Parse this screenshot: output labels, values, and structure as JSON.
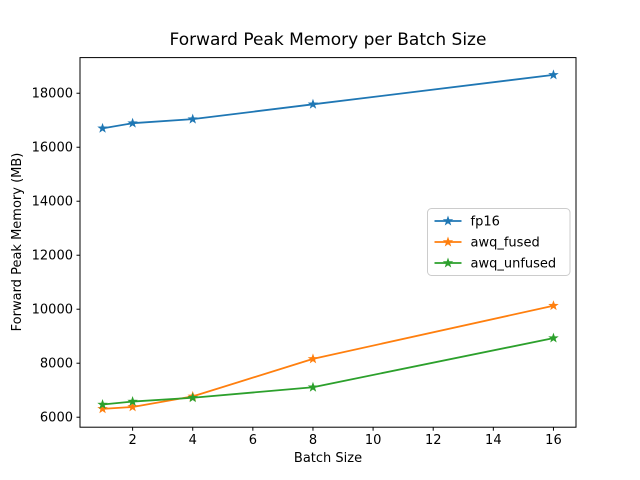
{
  "chart_data": {
    "type": "line",
    "title": "Forward Peak Memory per Batch Size",
    "xlabel": "Batch Size",
    "ylabel": "Forward Peak Memory (MB)",
    "x": [
      1,
      2,
      4,
      8,
      16
    ],
    "series": [
      {
        "name": "fp16",
        "color": "#1f77b4",
        "values": [
          16700,
          16890,
          17040,
          17590,
          18680
        ]
      },
      {
        "name": "awq_fused",
        "color": "#ff7f0e",
        "values": [
          6310,
          6380,
          6770,
          8160,
          10130
        ]
      },
      {
        "name": "awq_unfused",
        "color": "#2ca02c",
        "values": [
          6470,
          6580,
          6720,
          7110,
          8930
        ]
      }
    ],
    "marker": "star",
    "xticks": [
      2,
      4,
      6,
      8,
      10,
      12,
      14,
      16
    ],
    "yticks": [
      6000,
      8000,
      10000,
      12000,
      14000,
      16000,
      18000
    ],
    "xlim": [
      0.25,
      16.75
    ],
    "ylim": [
      5630,
      19320
    ],
    "grid": false,
    "legend_position": "center right",
    "colors": {
      "spine": "#000000",
      "background": "#ffffff",
      "legend_border": "#cccccc"
    }
  }
}
